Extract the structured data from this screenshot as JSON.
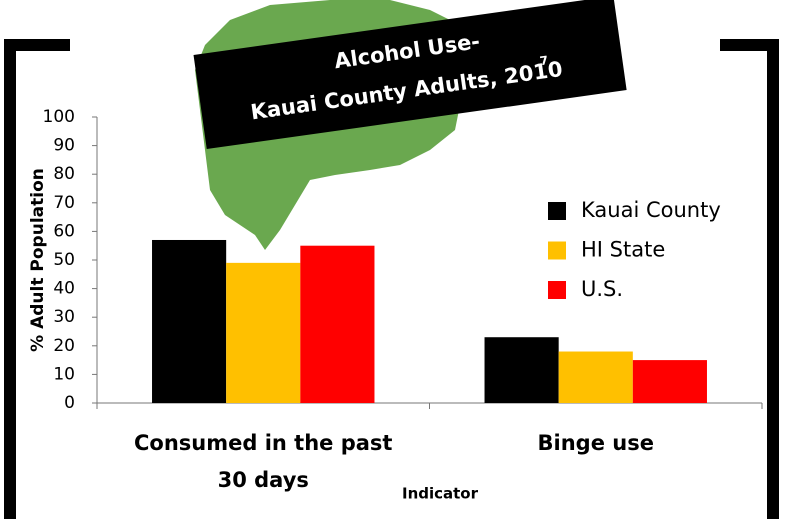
{
  "chart_data": {
    "type": "bar",
    "title": [
      "Alcohol Use-",
      "Kauai County Adults, 2010"
    ],
    "title_note": "7",
    "categories": [
      "Consumed in the past 30 days",
      "Binge use"
    ],
    "series": [
      {
        "name": "Kauai County",
        "color": "#000000",
        "values": [
          57,
          23
        ]
      },
      {
        "name": "HI State",
        "color": "#ffc000",
        "values": [
          49,
          18
        ]
      },
      {
        "name": "U.S.",
        "color": "#ff0000",
        "values": [
          55,
          15
        ]
      }
    ],
    "ylabel": "% Adult Population",
    "xlabel": "Indicator",
    "ylim": [
      0,
      100
    ],
    "yticks": [
      0,
      10,
      20,
      30,
      40,
      50,
      60,
      70,
      80,
      90,
      100
    ],
    "legend": "right",
    "grid": false
  }
}
